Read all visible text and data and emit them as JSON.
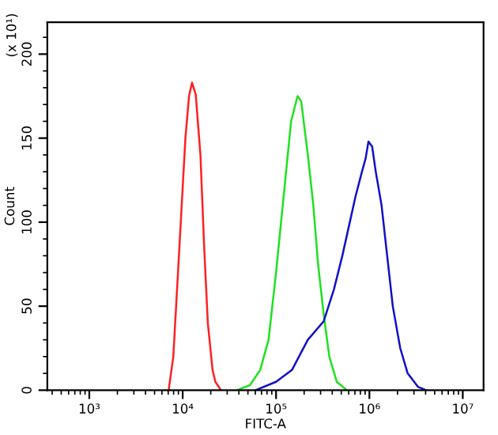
{
  "chart_data": {
    "type": "line",
    "xlabel": "FITC-A",
    "ylabel": "Count",
    "annotations": [
      "(x 10¹)"
    ],
    "log": "x",
    "xlim": [
      355,
      16700000
    ],
    "ylim": [
      0,
      219
    ],
    "xticks": [
      {
        "value": 1000,
        "label": "10³"
      },
      {
        "value": 10000,
        "label": "10⁴"
      },
      {
        "value": 100000,
        "label": "10⁵"
      },
      {
        "value": 1000000,
        "label": "10⁶"
      },
      {
        "value": 10000000,
        "label": "10⁷"
      }
    ],
    "yticks": [
      0,
      50,
      100,
      150,
      200
    ],
    "grid": false,
    "marker": "none",
    "line_style": "solid",
    "series": [
      {
        "color": "#ff2020",
        "x": [
          7080,
          7940,
          9120,
          10700,
          11700,
          12600,
          13800,
          15500,
          17000,
          18600,
          20900,
          22400,
          25700
        ],
        "values": [
          0,
          20,
          80,
          150,
          175,
          183,
          176,
          140,
          85,
          40,
          12,
          5,
          0
        ]
      },
      {
        "color": "#20e020",
        "x": [
          38000,
          52500,
          67600,
          83200,
          100000,
          123000,
          145000,
          170000,
          186000,
          219000,
          251000,
          282000,
          324000,
          372000,
          447000,
          575000
        ],
        "values": [
          0,
          3,
          12,
          30,
          70,
          120,
          160,
          175,
          172,
          140,
          110,
          75,
          45,
          20,
          5,
          0
        ]
      },
      {
        "color": "#1010c8",
        "x": [
          60300,
          100000,
          148000,
          219000,
          324000,
          417000,
          513000,
          617000,
          708000,
          832000,
          912000,
          977000,
          1070000,
          1170000,
          1350000,
          1550000,
          1780000,
          2140000,
          2570000,
          3310000,
          4070000
        ],
        "values": [
          0,
          5,
          12,
          30,
          41,
          60,
          80,
          100,
          115,
          130,
          138,
          148,
          145,
          130,
          110,
          80,
          50,
          25,
          10,
          2,
          0
        ]
      }
    ]
  }
}
